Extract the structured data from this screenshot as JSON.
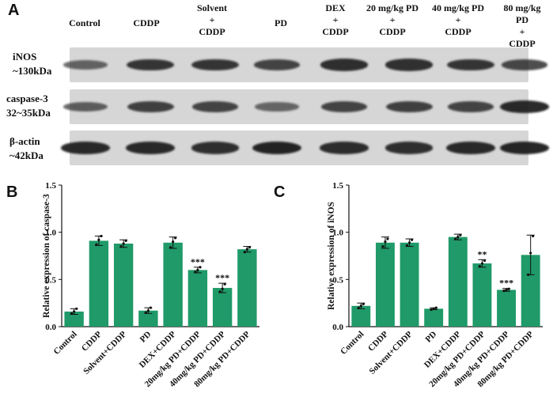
{
  "panels": {
    "a": "A",
    "b": "B",
    "c": "C"
  },
  "lanes": [
    "Control",
    "CDDP",
    "Solvent\n+\nCDDP",
    "PD",
    "DEX\n+\nCDDP",
    "20 mg/kg PD\n+\nCDDP",
    "40 mg/kg PD\n+\nCDDP",
    "80 mg/kg\nPD\n+\nCDDP"
  ],
  "blot_rows": [
    {
      "label": "iNOS\n~130kDa",
      "intensity": [
        0.45,
        0.85,
        0.85,
        0.72,
        0.9,
        0.88,
        0.85,
        0.7
      ]
    },
    {
      "label": "caspase-3\n32~35kDa",
      "intensity": [
        0.5,
        0.75,
        0.72,
        0.42,
        0.72,
        0.75,
        0.72,
        0.95
      ]
    },
    {
      "label": "β-actin\n~42kDa",
      "intensity": [
        0.95,
        0.95,
        0.9,
        1.0,
        0.92,
        0.9,
        0.95,
        0.98
      ]
    }
  ],
  "colors": {
    "bar": "#1f9a68",
    "blot_bg": "#d6d6d6",
    "band": "#1a1a1a"
  },
  "chart_data": [
    {
      "type": "bar",
      "panel": "B",
      "categories": [
        "Control",
        "CDDP",
        "Solvent+CDDP",
        "PD",
        "DEX+CDDP",
        "20mg/kg PD+CDDP",
        "40mg/kg PD+CDDP",
        "80mg/kg PD+CDDP"
      ],
      "values": [
        0.16,
        0.91,
        0.88,
        0.17,
        0.89,
        0.6,
        0.41,
        0.82
      ],
      "errors": [
        0.03,
        0.05,
        0.04,
        0.03,
        0.06,
        0.03,
        0.05,
        0.03
      ],
      "points": [
        [
          0.14,
          0.16,
          0.19
        ],
        [
          0.87,
          0.92,
          0.96
        ],
        [
          0.85,
          0.88,
          0.91
        ],
        [
          0.15,
          0.17,
          0.2
        ],
        [
          0.84,
          0.9,
          0.94
        ],
        [
          0.58,
          0.6,
          0.63
        ],
        [
          0.37,
          0.4,
          0.45
        ],
        [
          0.79,
          0.82,
          0.84
        ]
      ],
      "annotations": [
        "",
        "",
        "",
        "",
        "",
        "***",
        "***",
        ""
      ],
      "ylabel": "Relative expression of caspase-3",
      "xlabel": "",
      "ylim": [
        0,
        1.5
      ],
      "yticks": [
        "0.0",
        "0.5",
        "1.0",
        "1.5"
      ]
    },
    {
      "type": "bar",
      "panel": "C",
      "categories": [
        "Control",
        "CDDP",
        "Solvent+CDDP",
        "PD",
        "DEX+CDDP",
        "20mg/kg PD+CDDP",
        "40mg/kg PD+CDDP",
        "80mg/kg PD+CDDP"
      ],
      "values": [
        0.22,
        0.89,
        0.89,
        0.19,
        0.95,
        0.67,
        0.39,
        0.76
      ],
      "errors": [
        0.03,
        0.06,
        0.04,
        0.01,
        0.03,
        0.04,
        0.015,
        0.21
      ],
      "points": [
        [
          0.2,
          0.22,
          0.24
        ],
        [
          0.85,
          0.9,
          0.93
        ],
        [
          0.86,
          0.89,
          0.92
        ],
        [
          0.18,
          0.19,
          0.2
        ],
        [
          0.93,
          0.95,
          0.97
        ],
        [
          0.64,
          0.67,
          0.7
        ],
        [
          0.38,
          0.39,
          0.4
        ],
        [
          0.55,
          0.78,
          0.96
        ]
      ],
      "annotations": [
        "",
        "",
        "",
        "",
        "",
        "**",
        "***",
        ""
      ],
      "ylabel": "Relative expression of iNOS",
      "xlabel": "",
      "ylim": [
        0,
        1.5
      ],
      "yticks": [
        "0.0",
        "0.5",
        "1.0",
        "1.5"
      ]
    }
  ]
}
